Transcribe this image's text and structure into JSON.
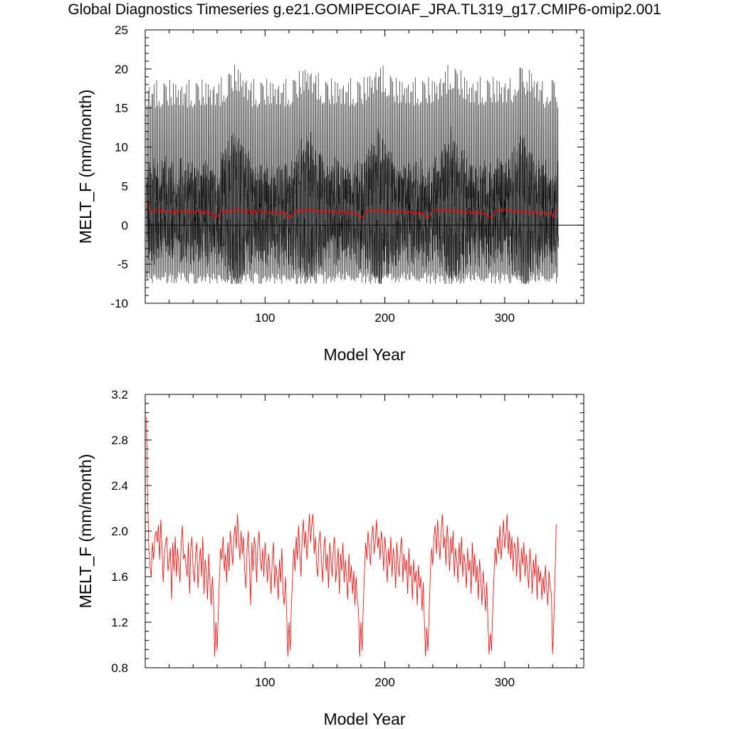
{
  "figure": {
    "title": "Global Diagnostics Timeseries g.e21.GOMIPECOIAF_JRA.TL319_g17.CMIP6-omip2.001",
    "colors": {
      "monthly": "#000000",
      "annual_mean": "#ff0000",
      "zero_line": "#000000"
    }
  },
  "chart_data": [
    {
      "type": "line",
      "xlabel": "Model Year",
      "ylabel": "MELT_F (mm/month)",
      "xlim": [
        0,
        366
      ],
      "ylim": [
        -10,
        25
      ],
      "x_ticks": [
        100,
        200,
        300
      ],
      "y_ticks": [
        -10,
        -5,
        0,
        5,
        10,
        15,
        20,
        25
      ],
      "y_tick_labels": [
        "-10",
        "-5",
        "0",
        "5",
        "10",
        "15",
        "20",
        "25"
      ],
      "x_tick_labels": [
        "100",
        "200",
        "300"
      ],
      "zero_line": 0,
      "monthly_summary": {
        "description_of_envelope_per_year_note": "",
        "annual_max_typical": 17,
        "annual_max_peak": 21,
        "annual_min_typical": -6,
        "annual_min_deep": -7.5,
        "dense_band_top": 8,
        "peak_years_dense_band": [
          75,
          135,
          195,
          255,
          315
        ]
      },
      "series": [
        {
          "key": "monthly",
          "color": "#000000"
        },
        {
          "key": "annual_mean",
          "color": "#ff0000"
        }
      ]
    },
    {
      "type": "line",
      "xlabel": "Model Year",
      "ylabel": "MELT_F (mm/month)",
      "xlim": [
        0,
        366
      ],
      "ylim": [
        0.8,
        3.2
      ],
      "x_ticks": [
        100,
        200,
        300
      ],
      "y_ticks": [
        0.8,
        1.2,
        1.6,
        2.0,
        2.4,
        2.8,
        3.2
      ],
      "y_tick_labels": [
        "0.8",
        "1.2",
        "1.6",
        "2.0",
        "2.4",
        "2.8",
        "3.2"
      ],
      "x_tick_labels": [
        "100",
        "200",
        "300"
      ],
      "series": [
        {
          "key": "annual_mean",
          "color": "#ff0000",
          "x_start": 1,
          "values": [
            3.0,
            2.3,
            1.85,
            1.7,
            1.6,
            1.9,
            1.75,
            1.95,
            2.0,
            1.9,
            2.05,
            1.75,
            2.1,
            1.85,
            1.55,
            1.8,
            1.9,
            1.95,
            1.65,
            1.75,
            1.85,
            1.4,
            1.9,
            1.65,
            1.95,
            1.6,
            1.85,
            1.7,
            1.55,
            1.9,
            2.05,
            1.75,
            1.8,
            1.7,
            1.6,
            1.9,
            1.45,
            1.85,
            1.95,
            1.65,
            1.55,
            1.8,
            1.9,
            1.5,
            1.7,
            1.85,
            1.6,
            1.95,
            1.45,
            1.75,
            1.65,
            1.4,
            1.8,
            1.55,
            1.35,
            1.6,
            1.4,
            0.9,
            1.2,
            0.95,
            1.3,
            1.6,
            1.85,
            1.75,
            1.95,
            1.65,
            1.8,
            1.55,
            1.9,
            1.65,
            2.0,
            1.85,
            1.7,
            1.95,
            2.05,
            1.85,
            2.15,
            1.9,
            1.75,
            2.0,
            1.8,
            1.95,
            1.65,
            1.5,
            1.85,
            2.0,
            1.7,
            1.35,
            1.9,
            1.65,
            1.95,
            1.85,
            1.55,
            1.9,
            2.0,
            1.75,
            1.65,
            1.85,
            1.6,
            1.9,
            1.75,
            1.55,
            1.8,
            1.65,
            1.45,
            1.75,
            1.9,
            1.5,
            1.7,
            1.6,
            1.4,
            1.75,
            1.55,
            1.85,
            1.45,
            1.35,
            1.6,
            1.3,
            0.9,
            1.2,
            0.95,
            1.35,
            1.6,
            1.85,
            1.65,
            1.95,
            1.75,
            2.05,
            1.8,
            1.6,
            1.95,
            2.1,
            1.85,
            2.0,
            1.75,
            1.95,
            2.15,
            1.9,
            2.05,
            2.15,
            1.8,
            1.95,
            1.7,
            1.6,
            1.9,
            2.0,
            1.75,
            1.55,
            1.85,
            1.95,
            1.65,
            1.8,
            1.5,
            1.9,
            1.75,
            1.6,
            1.85,
            1.95,
            1.55,
            1.7,
            1.85,
            1.45,
            1.8,
            1.65,
            1.9,
            1.55,
            1.75,
            1.6,
            1.4,
            1.8,
            1.55,
            1.7,
            1.45,
            1.65,
            1.35,
            1.6,
            1.4,
            1.3,
            0.9,
            1.2,
            0.95,
            1.35,
            1.65,
            1.9,
            1.75,
            2.0,
            1.85,
            1.7,
            1.95,
            2.05,
            1.8,
            1.9,
            2.1,
            1.85,
            1.95,
            1.75,
            2.0,
            1.9,
            1.65,
            1.95,
            1.8,
            1.55,
            1.85,
            1.7,
            1.95,
            1.6,
            1.85,
            1.75,
            1.5,
            1.9,
            1.7,
            1.6,
            1.85,
            1.95,
            1.55,
            1.8,
            1.65,
            1.75,
            1.45,
            1.85,
            1.6,
            1.7,
            1.4,
            1.75,
            1.55,
            1.65,
            1.35,
            1.7,
            1.5,
            1.6,
            1.3,
            1.55,
            1.2,
            0.9,
            1.15,
            0.95,
            1.3,
            1.65,
            1.85,
            1.7,
            1.95,
            2.05,
            1.8,
            2.1,
            1.9,
            1.75,
            2.0,
            2.15,
            1.85,
            1.95,
            1.7,
            2.05,
            1.9,
            1.65,
            1.95,
            1.8,
            2.0,
            1.6,
            1.85,
            1.75,
            1.55,
            1.9,
            1.7,
            1.95,
            1.6,
            1.8,
            1.7,
            1.5,
            1.85,
            1.65,
            1.75,
            1.45,
            1.9,
            1.6,
            1.8,
            1.55,
            1.7,
            1.4,
            1.75,
            1.6,
            1.35,
            1.65,
            1.5,
            1.3,
            1.55,
            1.2,
            0.92,
            1.1,
            0.95,
            1.3,
            1.6,
            1.85,
            1.7,
            1.95,
            1.8,
            2.05,
            1.75,
            1.9,
            2.1,
            1.85,
            1.95,
            2.15,
            1.8,
            2.0,
            1.75,
            1.95,
            1.65,
            1.9,
            1.85,
            1.6,
            1.95,
            1.75,
            1.55,
            1.85,
            1.7,
            1.9,
            1.6,
            1.8,
            1.65,
            1.5,
            1.85,
            1.7,
            1.45,
            1.75,
            1.6,
            1.8,
            1.4,
            1.7,
            1.55,
            1.65,
            1.4,
            1.6,
            1.45,
            1.7,
            1.5,
            1.35,
            1.65,
            1.5,
            1.45,
            0.92,
            1.2,
            1.6,
            2.05,
            2.05
          ]
        }
      ]
    }
  ]
}
